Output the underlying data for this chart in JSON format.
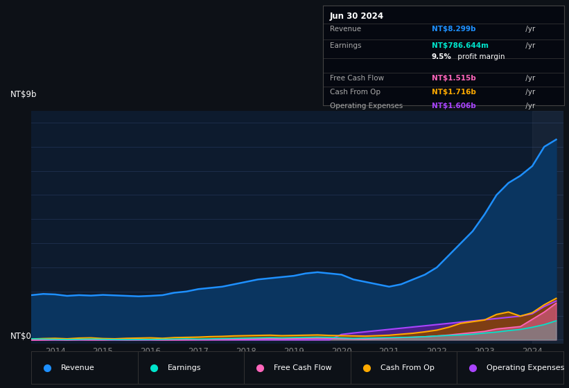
{
  "bg_color": "#0d1117",
  "plot_bg_color": "#0d1b2e",
  "grid_color": "#1e3050",
  "title_date": "Jun 30 2024",
  "ylabel_top": "NT$9b",
  "ylabel_bottom": "NT$0",
  "x_min": 2013.5,
  "x_max": 2024.65,
  "y_min": -150000000.0,
  "y_max": 9500000000.0,
  "revenue_color": "#1e90ff",
  "revenue_fill": "#0a3560",
  "earnings_color": "#00e5cc",
  "fcf_color": "#ff66bb",
  "cashfromop_color": "#ffaa00",
  "cashfromop_fill": "#884400",
  "opex_color": "#aa44ff",
  "opex_fill": "#4a1f88",
  "earnings_fill_color": "#005544",
  "info_rows": [
    {
      "label": "Revenue",
      "value": "NT$8.299b",
      "suffix": " /yr",
      "color": "#1e90ff"
    },
    {
      "label": "Earnings",
      "value": "NT$786.644m",
      "suffix": " /yr",
      "color": "#00e5cc"
    },
    {
      "label": "",
      "value": "9.5%",
      "suffix": " profit margin",
      "color": "#ffffff",
      "is_margin": true
    },
    {
      "label": "Free Cash Flow",
      "value": "NT$1.515b",
      "suffix": " /yr",
      "color": "#ff66bb"
    },
    {
      "label": "Cash From Op",
      "value": "NT$1.716b",
      "suffix": " /yr",
      "color": "#ffaa00"
    },
    {
      "label": "Operating Expenses",
      "value": "NT$1.606b",
      "suffix": " /yr",
      "color": "#aa44ff"
    }
  ],
  "legend_items": [
    {
      "label": "Revenue",
      "color": "#1e90ff"
    },
    {
      "label": "Earnings",
      "color": "#00e5cc"
    },
    {
      "label": "Free Cash Flow",
      "color": "#ff66bb"
    },
    {
      "label": "Cash From Op",
      "color": "#ffaa00"
    },
    {
      "label": "Operating Expenses",
      "color": "#aa44ff"
    }
  ],
  "time_points": [
    2013.5,
    2013.75,
    2014.0,
    2014.25,
    2014.5,
    2014.75,
    2015.0,
    2015.25,
    2015.5,
    2015.75,
    2016.0,
    2016.25,
    2016.5,
    2016.75,
    2017.0,
    2017.25,
    2017.5,
    2017.75,
    2018.0,
    2018.25,
    2018.5,
    2018.75,
    2019.0,
    2019.25,
    2019.5,
    2019.75,
    2020.0,
    2020.25,
    2020.5,
    2020.75,
    2021.0,
    2021.25,
    2021.5,
    2021.75,
    2022.0,
    2022.25,
    2022.5,
    2022.75,
    2023.0,
    2023.25,
    2023.5,
    2023.75,
    2024.0,
    2024.25,
    2024.5
  ],
  "revenue": [
    1850000000.0,
    1900000000.0,
    1880000000.0,
    1820000000.0,
    1850000000.0,
    1830000000.0,
    1860000000.0,
    1840000000.0,
    1820000000.0,
    1800000000.0,
    1820000000.0,
    1850000000.0,
    1950000000.0,
    2000000000.0,
    2100000000.0,
    2150000000.0,
    2200000000.0,
    2300000000.0,
    2400000000.0,
    2500000000.0,
    2550000000.0,
    2600000000.0,
    2650000000.0,
    2750000000.0,
    2800000000.0,
    2750000000.0,
    2700000000.0,
    2500000000.0,
    2400000000.0,
    2300000000.0,
    2200000000.0,
    2300000000.0,
    2500000000.0,
    2700000000.0,
    3000000000.0,
    3500000000.0,
    4000000000.0,
    4500000000.0,
    5200000000.0,
    6000000000.0,
    6500000000.0,
    6800000000.0,
    7200000000.0,
    8000000000.0,
    8299000000.0
  ],
  "earnings": [
    40000000.0,
    30000000.0,
    20000000.0,
    10000000.0,
    20000000.0,
    30000000.0,
    20000000.0,
    10000000.0,
    5000000.0,
    10000000.0,
    15000000.0,
    20000000.0,
    30000000.0,
    40000000.0,
    30000000.0,
    40000000.0,
    50000000.0,
    60000000.0,
    70000000.0,
    80000000.0,
    90000000.0,
    80000000.0,
    90000000.0,
    100000000.0,
    110000000.0,
    100000000.0,
    80000000.0,
    60000000.0,
    70000000.0,
    80000000.0,
    90000000.0,
    100000000.0,
    110000000.0,
    130000000.0,
    160000000.0,
    180000000.0,
    200000000.0,
    230000000.0,
    280000000.0,
    320000000.0,
    380000000.0,
    430000000.0,
    520000000.0,
    630000000.0,
    787000000.0
  ],
  "fcf": [
    -10000000.0,
    -5000000.0,
    5000000.0,
    -10000000.0,
    5000000.0,
    0.0,
    -5000000.0,
    5000000.0,
    -5000000.0,
    0.0,
    5000000.0,
    -5000000.0,
    0.0,
    5000000.0,
    10000000.0,
    15000000.0,
    20000000.0,
    25000000.0,
    30000000.0,
    40000000.0,
    50000000.0,
    40000000.0,
    50000000.0,
    60000000.0,
    70000000.0,
    60000000.0,
    50000000.0,
    40000000.0,
    30000000.0,
    50000000.0,
    70000000.0,
    90000000.0,
    110000000.0,
    130000000.0,
    160000000.0,
    200000000.0,
    250000000.0,
    300000000.0,
    350000000.0,
    450000000.0,
    500000000.0,
    550000000.0,
    850000000.0,
    1150000000.0,
    1515000000.0
  ],
  "cash_from_op": [
    30000000.0,
    50000000.0,
    60000000.0,
    40000000.0,
    70000000.0,
    80000000.0,
    50000000.0,
    40000000.0,
    60000000.0,
    70000000.0,
    80000000.0,
    60000000.0,
    90000000.0,
    100000000.0,
    110000000.0,
    130000000.0,
    140000000.0,
    160000000.0,
    170000000.0,
    180000000.0,
    190000000.0,
    170000000.0,
    180000000.0,
    190000000.0,
    200000000.0,
    180000000.0,
    170000000.0,
    160000000.0,
    150000000.0,
    170000000.0,
    190000000.0,
    230000000.0,
    270000000.0,
    330000000.0,
    400000000.0,
    520000000.0,
    680000000.0,
    750000000.0,
    820000000.0,
    1050000000.0,
    1150000000.0,
    980000000.0,
    1120000000.0,
    1450000000.0,
    1716000000.0
  ],
  "opex": [
    0.0,
    0.0,
    0.0,
    0.0,
    0.0,
    0.0,
    0.0,
    0.0,
    0.0,
    0.0,
    0.0,
    0.0,
    0.0,
    0.0,
    0.0,
    0.0,
    0.0,
    0.0,
    0.0,
    0.0,
    0.0,
    0.0,
    0.0,
    0.0,
    0.0,
    0.0,
    220000000.0,
    280000000.0,
    330000000.0,
    380000000.0,
    430000000.0,
    480000000.0,
    530000000.0,
    580000000.0,
    630000000.0,
    680000000.0,
    730000000.0,
    780000000.0,
    830000000.0,
    880000000.0,
    930000000.0,
    980000000.0,
    1080000000.0,
    1380000000.0,
    1606000000.0
  ]
}
